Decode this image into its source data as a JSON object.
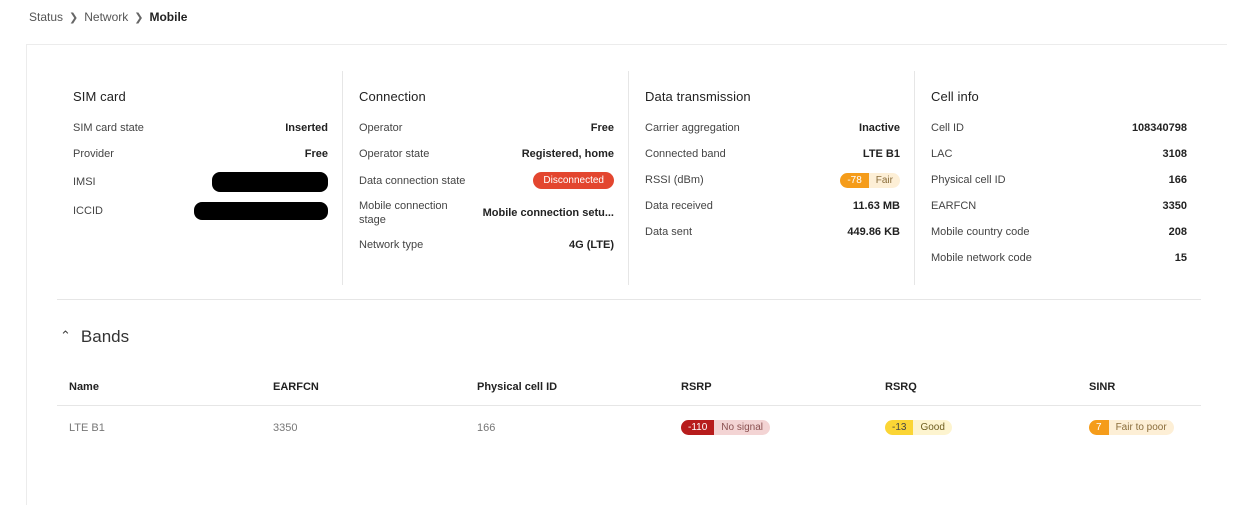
{
  "breadcrumb": {
    "items": [
      "Status",
      "Network"
    ],
    "current": "Mobile"
  },
  "sim": {
    "title": "SIM card",
    "rows": [
      {
        "key": "SIM card state",
        "value": "Inserted"
      },
      {
        "key": "Provider",
        "value": "Free"
      },
      {
        "key": "IMSI",
        "value": ""
      },
      {
        "key": "ICCID",
        "value": ""
      }
    ]
  },
  "connection": {
    "title": "Connection",
    "rows": [
      {
        "key": "Operator",
        "value": "Free"
      },
      {
        "key": "Operator state",
        "value": "Registered, home"
      },
      {
        "key": "Data connection state",
        "value": "Disconnected"
      },
      {
        "key": "Mobile connection stage",
        "value": "Mobile connection setu..."
      },
      {
        "key": "Network type",
        "value": "4G (LTE)"
      }
    ]
  },
  "data_tx": {
    "title": "Data transmission",
    "rows": [
      {
        "key": "Carrier aggregation",
        "value": "Inactive"
      },
      {
        "key": "Connected band",
        "value": "LTE B1"
      },
      {
        "key": "RSSI (dBm)",
        "value": "-78",
        "label": "Fair"
      },
      {
        "key": "Data received",
        "value": "11.63 MB"
      },
      {
        "key": "Data sent",
        "value": "449.86 KB"
      }
    ]
  },
  "cell": {
    "title": "Cell info",
    "rows": [
      {
        "key": "Cell ID",
        "value": "108340798"
      },
      {
        "key": "LAC",
        "value": "3108"
      },
      {
        "key": "Physical cell ID",
        "value": "166"
      },
      {
        "key": "EARFCN",
        "value": "3350"
      },
      {
        "key": "Mobile country code",
        "value": "208"
      },
      {
        "key": "Mobile network code",
        "value": "15"
      }
    ]
  },
  "bands": {
    "title": "Bands",
    "headers": [
      "Name",
      "EARFCN",
      "Physical cell ID",
      "RSRP",
      "RSRQ",
      "SINR"
    ],
    "row": {
      "name": "LTE B1",
      "earfcn": "3350",
      "pci": "166",
      "rsrp": {
        "value": "-110",
        "label": "No signal"
      },
      "rsrq": {
        "value": "-13",
        "label": "Good"
      },
      "sinr": {
        "value": "7",
        "label": "Fair to poor"
      }
    }
  },
  "colors": {
    "disconnected": "#e3462f",
    "fair_num": "#f59c1a",
    "fair_text_bg": "#fdefd6",
    "nosignal_num": "#b71c1c",
    "nosignal_text_bg": "#f3d4d4",
    "good_num": "#fbd535",
    "good_text_bg": "#fdf4cf",
    "fairpoor_num": "#f59c1a",
    "fairpoor_text_bg": "#fdefd6"
  }
}
